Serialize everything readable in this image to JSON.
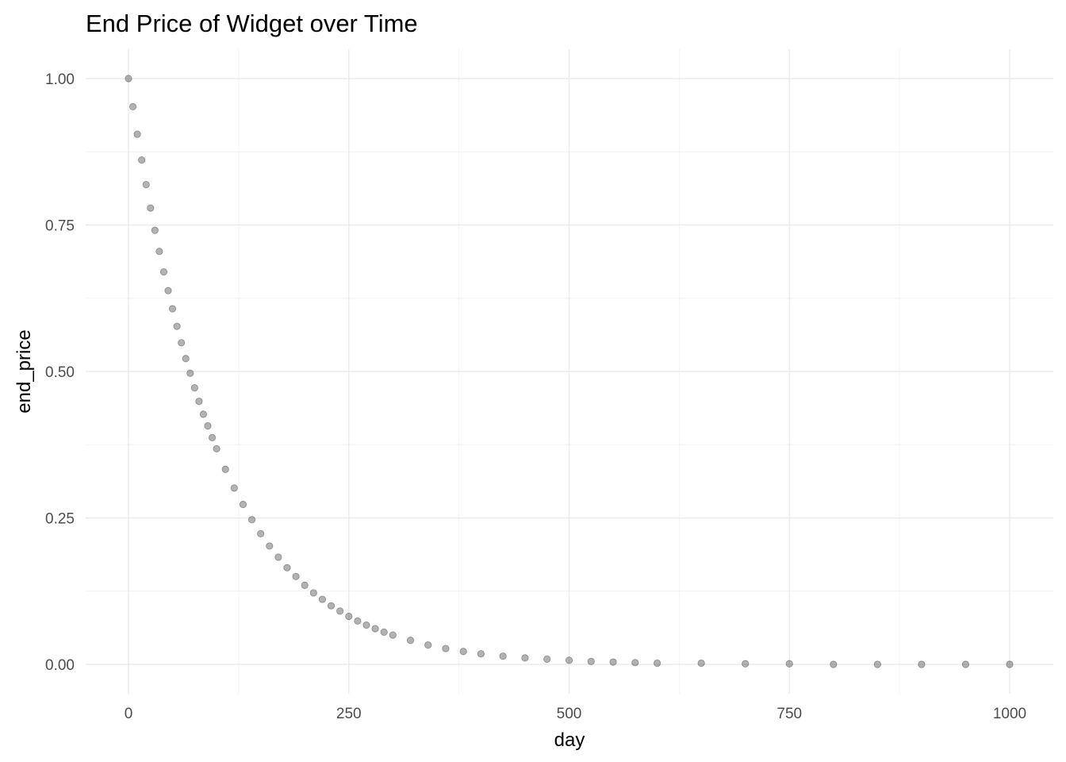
{
  "chart_data": {
    "type": "scatter",
    "title": "End Price of Widget over Time",
    "xlabel": "day",
    "ylabel": "end_price",
    "xlim": [
      0,
      1000
    ],
    "ylim": [
      0,
      1
    ],
    "x_ticks": [
      0,
      250,
      500,
      750,
      1000
    ],
    "x_tick_labels": [
      "0",
      "250",
      "500",
      "750",
      "1000"
    ],
    "y_ticks": [
      0,
      0.25,
      0.5,
      0.75,
      1
    ],
    "y_tick_labels": [
      "0.00",
      "0.25",
      "0.50",
      "0.75",
      "1.00"
    ],
    "grid": true,
    "legend": "none",
    "point_color": "#000000",
    "series": [
      {
        "x": [
          0,
          5,
          10,
          15,
          20,
          25,
          30,
          35,
          40,
          45,
          50,
          55,
          60,
          65,
          70,
          75,
          80,
          85,
          90,
          95,
          100,
          110,
          120,
          130,
          140,
          150,
          160,
          170,
          180,
          190,
          200,
          210,
          220,
          230,
          240,
          250,
          260,
          270,
          280,
          290,
          300,
          320,
          340,
          360,
          380,
          400,
          425,
          450,
          475,
          500,
          525,
          550,
          575,
          600,
          650,
          700,
          750,
          800,
          850,
          900,
          950,
          1000
        ],
        "y": [
          1.0,
          0.952,
          0.905,
          0.861,
          0.819,
          0.779,
          0.741,
          0.705,
          0.67,
          0.638,
          0.607,
          0.577,
          0.549,
          0.522,
          0.497,
          0.472,
          0.449,
          0.427,
          0.407,
          0.387,
          0.368,
          0.333,
          0.301,
          0.273,
          0.247,
          0.223,
          0.202,
          0.183,
          0.165,
          0.15,
          0.135,
          0.122,
          0.111,
          0.1,
          0.091,
          0.082,
          0.074,
          0.067,
          0.061,
          0.055,
          0.05,
          0.041,
          0.033,
          0.027,
          0.022,
          0.018,
          0.014,
          0.011,
          0.009,
          0.007,
          0.005,
          0.004,
          0.003,
          0.002,
          0.002,
          0.001,
          0.001,
          0.0,
          0.0,
          0.0,
          0.0,
          0.0
        ]
      }
    ]
  }
}
